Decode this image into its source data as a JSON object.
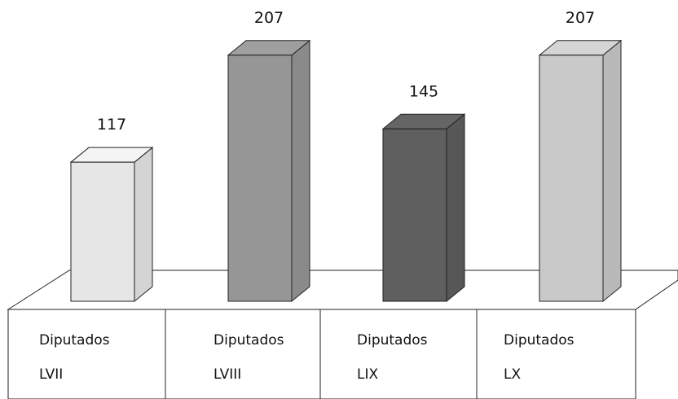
{
  "chart_data": {
    "type": "bar3d",
    "categories": [
      "Diputados LVII",
      "Diputados LVIII",
      "Diputados LIX",
      "Diputados LX"
    ],
    "values": [
      117,
      207,
      145,
      207
    ],
    "colors": [
      "#e6e6e6",
      "#969696",
      "#5f5f5f",
      "#c9c9c9"
    ]
  }
}
